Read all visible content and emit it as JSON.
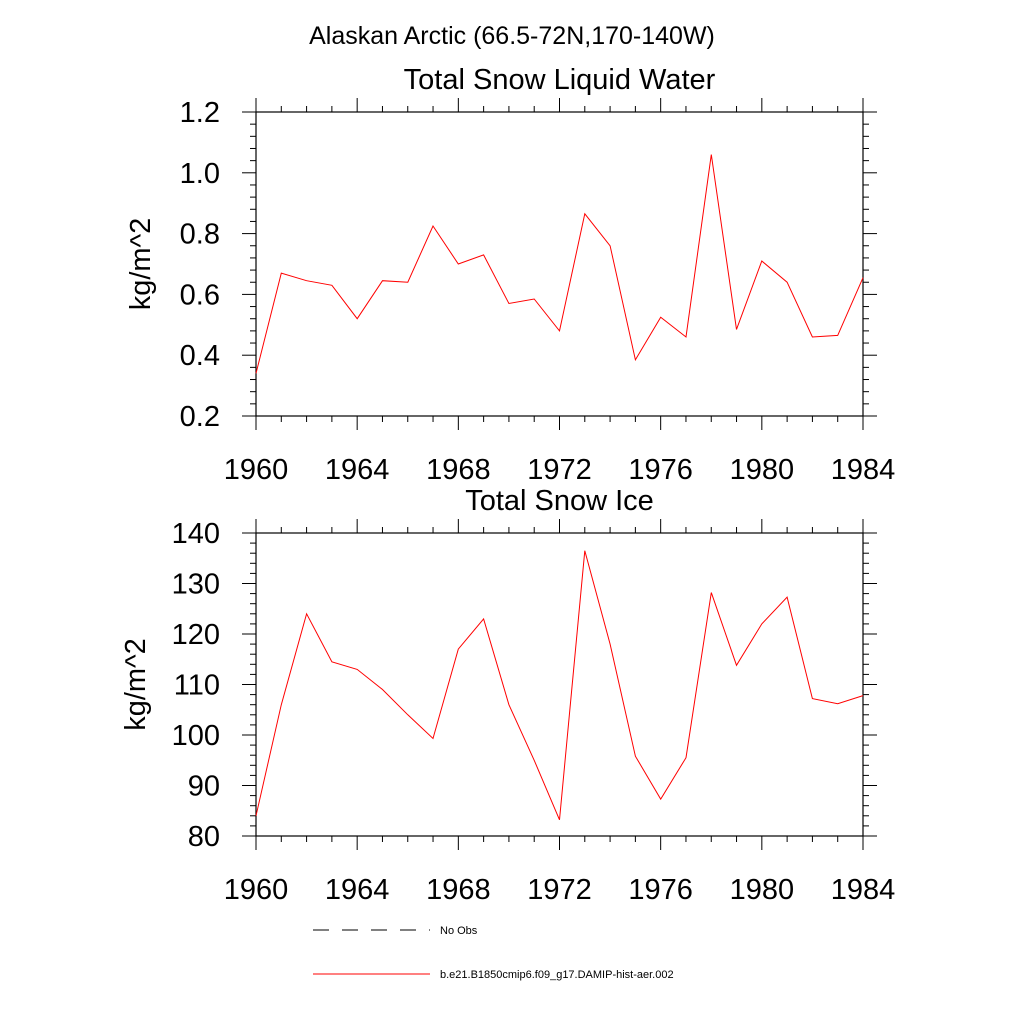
{
  "figure": {
    "title": "Alaskan Arctic (66.5-72N,170-140W)"
  },
  "legend": {
    "items": [
      {
        "label": "No Obs",
        "style": "dashed",
        "color": "#000000"
      },
      {
        "label": "b.e21.B1850cmip6.f09_g17.DAMIP-hist-aer.002",
        "style": "solid",
        "color": "#ff0000"
      }
    ]
  },
  "chart_data": [
    {
      "type": "line",
      "title": "Total Snow Liquid Water",
      "ylabel": "kg/m^2",
      "xlabel": "",
      "xlim": [
        1960,
        1984
      ],
      "ylim": [
        0.2,
        1.2
      ],
      "xticks": [
        1960,
        1964,
        1968,
        1972,
        1976,
        1980,
        1984
      ],
      "yticks": [
        0.2,
        0.4,
        0.6,
        0.8,
        1.0,
        1.2
      ],
      "ytick_labels": [
        "0.2",
        "0.4",
        "0.6",
        "0.8",
        "1.0",
        "1.2"
      ],
      "grid": false,
      "legend_position": "bottom",
      "x": [
        1960,
        1961,
        1962,
        1963,
        1964,
        1965,
        1966,
        1967,
        1968,
        1969,
        1970,
        1971,
        1972,
        1973,
        1974,
        1975,
        1976,
        1977,
        1978,
        1979,
        1980,
        1981,
        1982,
        1983,
        1984
      ],
      "series": [
        {
          "name": "b.e21.B1850cmip6.f09_g17.DAMIP-hist-aer.002",
          "color": "#ff0000",
          "values": [
            0.34,
            0.67,
            0.645,
            0.63,
            0.52,
            0.645,
            0.64,
            0.825,
            0.7,
            0.73,
            0.57,
            0.585,
            0.48,
            0.865,
            0.76,
            0.385,
            0.525,
            0.46,
            1.06,
            0.485,
            0.71,
            0.64,
            0.46,
            0.465,
            0.655
          ]
        }
      ]
    },
    {
      "type": "line",
      "title": "Total Snow Ice",
      "ylabel": "kg/m^2",
      "xlabel": "",
      "xlim": [
        1960,
        1984
      ],
      "ylim": [
        80,
        140
      ],
      "xticks": [
        1960,
        1964,
        1968,
        1972,
        1976,
        1980,
        1984
      ],
      "yticks": [
        80,
        90,
        100,
        110,
        120,
        130,
        140
      ],
      "ytick_labels": [
        "80",
        "90",
        "100",
        "110",
        "120",
        "130",
        "140"
      ],
      "grid": false,
      "legend_position": "bottom",
      "x": [
        1960,
        1961,
        1962,
        1963,
        1964,
        1965,
        1966,
        1967,
        1968,
        1969,
        1970,
        1971,
        1972,
        1973,
        1974,
        1975,
        1976,
        1977,
        1978,
        1979,
        1980,
        1981,
        1982,
        1983,
        1984
      ],
      "series": [
        {
          "name": "b.e21.B1850cmip6.f09_g17.DAMIP-hist-aer.002",
          "color": "#ff0000",
          "values": [
            84,
            106,
            124,
            114.5,
            113,
            109,
            104,
            99.3,
            117,
            123,
            106,
            95,
            83.2,
            136.5,
            118,
            95.8,
            87.3,
            95.5,
            128.2,
            113.8,
            122,
            127.3,
            107.2,
            106.2,
            107.8
          ]
        }
      ]
    }
  ]
}
